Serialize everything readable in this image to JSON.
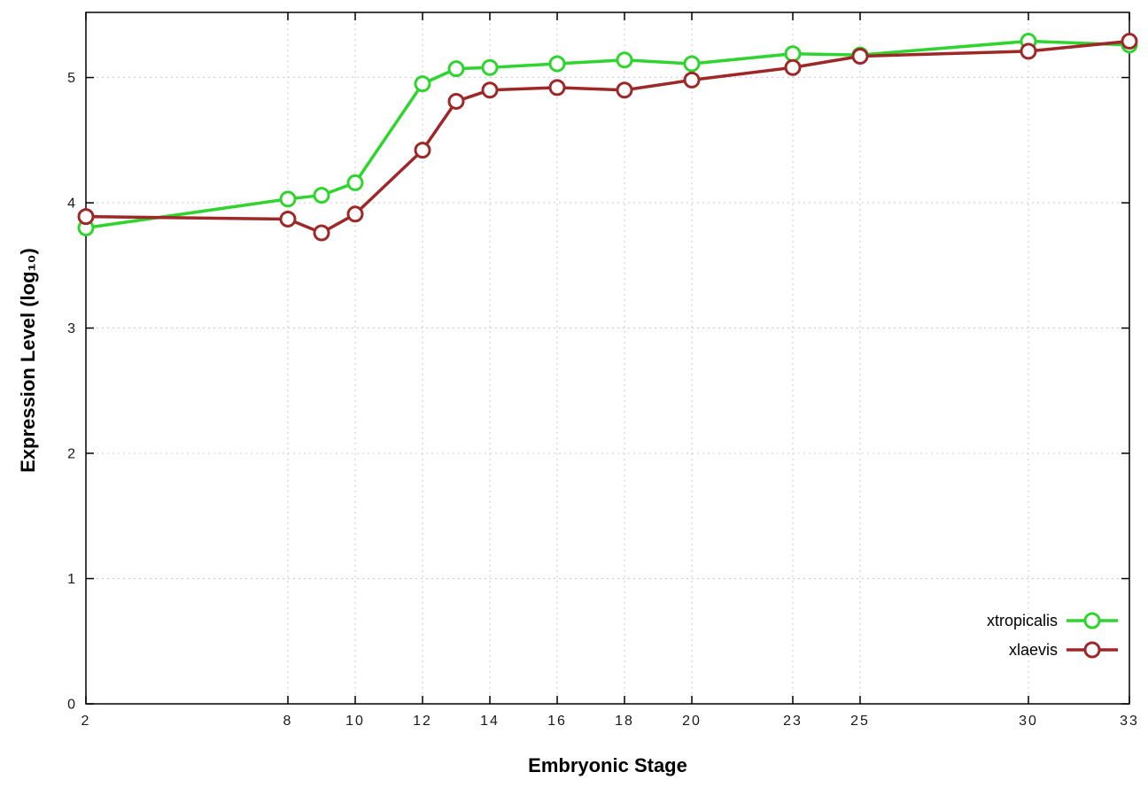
{
  "chart_data": {
    "type": "line",
    "title": "",
    "xlabel": "Embryonic Stage",
    "ylabel": "Expression Level (log₁₀)",
    "x": [
      2,
      8,
      9,
      10,
      12,
      13,
      14,
      16,
      18,
      20,
      23,
      25,
      30,
      33
    ],
    "series": [
      {
        "name": "xtropicalis",
        "color": "#2fd42f",
        "values": [
          3.8,
          4.03,
          4.06,
          4.16,
          4.95,
          5.07,
          5.08,
          5.11,
          5.14,
          5.11,
          5.19,
          5.18,
          5.29,
          5.26
        ]
      },
      {
        "name": "xlaevis",
        "color": "#9e2828",
        "values": [
          3.89,
          3.87,
          3.76,
          3.91,
          4.42,
          4.81,
          4.9,
          4.92,
          4.9,
          4.98,
          5.08,
          5.17,
          5.21,
          5.29
        ]
      }
    ],
    "xticks": [
      2,
      8,
      10,
      12,
      14,
      16,
      18,
      20,
      23,
      25,
      30,
      33
    ],
    "yticks": [
      0,
      1,
      2,
      3,
      4,
      5
    ],
    "xlim": [
      2,
      33
    ],
    "ylim": [
      0,
      5.52
    ],
    "grid": true,
    "legend_position": "inside-right-bottom",
    "marker": "open-circle",
    "background_color": "#ffffff",
    "grid_color": "#c8c8c8",
    "border_color": "#000000"
  }
}
